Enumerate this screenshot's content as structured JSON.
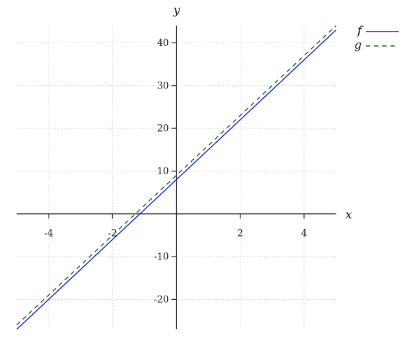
{
  "chart_data": {
    "type": "line",
    "title": "",
    "xlabel": "x",
    "ylabel": "y",
    "xlim": [
      -5,
      5
    ],
    "ylim": [
      -27,
      44
    ],
    "xticks": [
      -4,
      -2,
      2,
      4
    ],
    "yticks": [
      -20,
      -10,
      10,
      20,
      30,
      40
    ],
    "grid": "dotted",
    "axes_style": "centered-through-origin",
    "legend_position": "outside-top-right",
    "series": [
      {
        "name": "f",
        "color": "#1414dd",
        "line_style": "solid",
        "points": [
          [
            -5,
            -27
          ],
          [
            5,
            43
          ]
        ]
      },
      {
        "name": "g",
        "color": "#007000",
        "line_style": "dashed",
        "points": [
          [
            -5,
            -26
          ],
          [
            5,
            44
          ]
        ]
      }
    ]
  }
}
